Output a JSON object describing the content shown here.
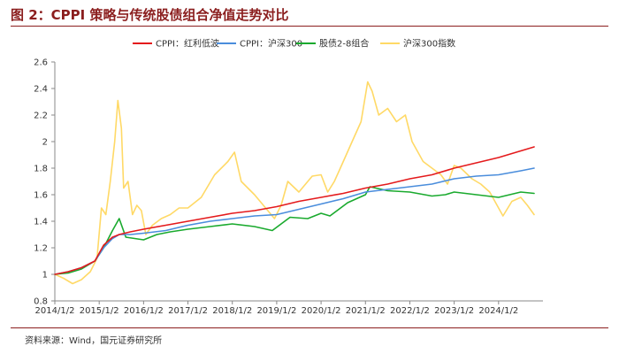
{
  "header": {
    "title": "图 2：CPPI 策略与传统股债组合净值走势对比"
  },
  "footer": {
    "source": "资料来源：Wind，国元证券研究所"
  },
  "colors": {
    "cppi_dividend": "#E41A1C",
    "cppi_hs300": "#4A8DDC",
    "stock_bond_28": "#1AAA2E",
    "hs300_index": "#FFD966",
    "axis": "#888888",
    "title": "#8B1E1E"
  },
  "chart_data": {
    "type": "line",
    "title": "",
    "xlabel": "",
    "ylabel": "",
    "ylim": [
      0.8,
      2.6
    ],
    "y_ticks": [
      "0.8",
      "1",
      "1.2",
      "1.4",
      "1.6",
      "1.8",
      "2",
      "2.2",
      "2.4",
      "2.6"
    ],
    "x_ticks": [
      "2014/1/2",
      "2015/1/2",
      "2016/1/2",
      "2017/1/2",
      "2018/1/2",
      "2019/1/2",
      "2020/1/2",
      "2021/1/2",
      "2022/1/2",
      "2023/1/2",
      "2024/1/2"
    ],
    "x_start": 2014.0,
    "x_end": 2025.0,
    "legend_position": "top",
    "series": [
      {
        "name": "CPPI：红利低波",
        "color": "#E41A1C",
        "points": [
          [
            2014.0,
            1.0
          ],
          [
            2014.3,
            1.02
          ],
          [
            2014.6,
            1.05
          ],
          [
            2014.9,
            1.1
          ],
          [
            2015.1,
            1.22
          ],
          [
            2015.3,
            1.28
          ],
          [
            2015.45,
            1.3
          ],
          [
            2015.7,
            1.32
          ],
          [
            2016.0,
            1.34
          ],
          [
            2016.5,
            1.37
          ],
          [
            2017.0,
            1.4
          ],
          [
            2017.5,
            1.43
          ],
          [
            2018.0,
            1.46
          ],
          [
            2018.5,
            1.48
          ],
          [
            2019.0,
            1.51
          ],
          [
            2019.5,
            1.55
          ],
          [
            2020.0,
            1.58
          ],
          [
            2020.5,
            1.61
          ],
          [
            2021.0,
            1.65
          ],
          [
            2021.5,
            1.68
          ],
          [
            2022.0,
            1.72
          ],
          [
            2022.5,
            1.75
          ],
          [
            2023.0,
            1.8
          ],
          [
            2023.5,
            1.84
          ],
          [
            2024.0,
            1.88
          ],
          [
            2024.5,
            1.93
          ],
          [
            2024.8,
            1.96
          ]
        ]
      },
      {
        "name": "CPPI：沪深300",
        "color": "#4A8DDC",
        "points": [
          [
            2014.0,
            1.0
          ],
          [
            2014.3,
            1.02
          ],
          [
            2014.6,
            1.05
          ],
          [
            2014.9,
            1.1
          ],
          [
            2015.1,
            1.2
          ],
          [
            2015.3,
            1.27
          ],
          [
            2015.45,
            1.3
          ],
          [
            2015.7,
            1.3
          ],
          [
            2016.0,
            1.31
          ],
          [
            2016.5,
            1.33
          ],
          [
            2017.0,
            1.37
          ],
          [
            2017.5,
            1.4
          ],
          [
            2018.0,
            1.42
          ],
          [
            2018.5,
            1.44
          ],
          [
            2019.0,
            1.45
          ],
          [
            2019.5,
            1.49
          ],
          [
            2020.0,
            1.53
          ],
          [
            2020.5,
            1.57
          ],
          [
            2021.0,
            1.62
          ],
          [
            2021.5,
            1.64
          ],
          [
            2022.0,
            1.66
          ],
          [
            2022.5,
            1.68
          ],
          [
            2023.0,
            1.72
          ],
          [
            2023.5,
            1.74
          ],
          [
            2024.0,
            1.75
          ],
          [
            2024.5,
            1.78
          ],
          [
            2024.8,
            1.8
          ]
        ]
      },
      {
        "name": "股债2-8组合",
        "color": "#1AAA2E",
        "points": [
          [
            2014.0,
            1.0
          ],
          [
            2014.3,
            1.01
          ],
          [
            2014.6,
            1.04
          ],
          [
            2014.9,
            1.1
          ],
          [
            2015.1,
            1.2
          ],
          [
            2015.3,
            1.33
          ],
          [
            2015.45,
            1.42
          ],
          [
            2015.6,
            1.28
          ],
          [
            2015.8,
            1.27
          ],
          [
            2016.0,
            1.26
          ],
          [
            2016.3,
            1.3
          ],
          [
            2016.6,
            1.32
          ],
          [
            2017.0,
            1.34
          ],
          [
            2017.5,
            1.36
          ],
          [
            2018.0,
            1.38
          ],
          [
            2018.5,
            1.36
          ],
          [
            2018.9,
            1.33
          ],
          [
            2019.3,
            1.43
          ],
          [
            2019.7,
            1.42
          ],
          [
            2020.0,
            1.46
          ],
          [
            2020.2,
            1.44
          ],
          [
            2020.6,
            1.54
          ],
          [
            2021.0,
            1.6
          ],
          [
            2021.1,
            1.66
          ],
          [
            2021.5,
            1.63
          ],
          [
            2022.0,
            1.62
          ],
          [
            2022.5,
            1.59
          ],
          [
            2022.8,
            1.6
          ],
          [
            2023.0,
            1.62
          ],
          [
            2023.5,
            1.6
          ],
          [
            2024.0,
            1.58
          ],
          [
            2024.5,
            1.62
          ],
          [
            2024.8,
            1.61
          ]
        ]
      },
      {
        "name": "沪深300指数",
        "color": "#FFD966",
        "points": [
          [
            2014.0,
            1.0
          ],
          [
            2014.2,
            0.97
          ],
          [
            2014.4,
            0.93
          ],
          [
            2014.6,
            0.96
          ],
          [
            2014.8,
            1.02
          ],
          [
            2014.95,
            1.12
          ],
          [
            2015.05,
            1.5
          ],
          [
            2015.15,
            1.45
          ],
          [
            2015.25,
            1.7
          ],
          [
            2015.35,
            2.0
          ],
          [
            2015.42,
            2.31
          ],
          [
            2015.5,
            2.1
          ],
          [
            2015.55,
            1.65
          ],
          [
            2015.65,
            1.7
          ],
          [
            2015.75,
            1.45
          ],
          [
            2015.85,
            1.52
          ],
          [
            2015.95,
            1.48
          ],
          [
            2016.05,
            1.3
          ],
          [
            2016.2,
            1.37
          ],
          [
            2016.4,
            1.42
          ],
          [
            2016.6,
            1.45
          ],
          [
            2016.8,
            1.5
          ],
          [
            2017.0,
            1.5
          ],
          [
            2017.3,
            1.58
          ],
          [
            2017.6,
            1.75
          ],
          [
            2017.9,
            1.85
          ],
          [
            2018.05,
            1.92
          ],
          [
            2018.2,
            1.7
          ],
          [
            2018.5,
            1.6
          ],
          [
            2018.8,
            1.48
          ],
          [
            2018.95,
            1.42
          ],
          [
            2019.1,
            1.52
          ],
          [
            2019.25,
            1.7
          ],
          [
            2019.5,
            1.62
          ],
          [
            2019.8,
            1.74
          ],
          [
            2020.0,
            1.75
          ],
          [
            2020.15,
            1.62
          ],
          [
            2020.3,
            1.7
          ],
          [
            2020.5,
            1.85
          ],
          [
            2020.7,
            2.0
          ],
          [
            2020.9,
            2.15
          ],
          [
            2021.05,
            2.45
          ],
          [
            2021.15,
            2.38
          ],
          [
            2021.3,
            2.2
          ],
          [
            2021.5,
            2.25
          ],
          [
            2021.7,
            2.15
          ],
          [
            2021.9,
            2.2
          ],
          [
            2022.05,
            2.0
          ],
          [
            2022.3,
            1.85
          ],
          [
            2022.5,
            1.8
          ],
          [
            2022.7,
            1.75
          ],
          [
            2022.85,
            1.68
          ],
          [
            2023.0,
            1.82
          ],
          [
            2023.15,
            1.8
          ],
          [
            2023.4,
            1.72
          ],
          [
            2023.6,
            1.68
          ],
          [
            2023.8,
            1.62
          ],
          [
            2024.0,
            1.5
          ],
          [
            2024.1,
            1.44
          ],
          [
            2024.3,
            1.55
          ],
          [
            2024.5,
            1.58
          ],
          [
            2024.65,
            1.52
          ],
          [
            2024.8,
            1.45
          ]
        ]
      }
    ]
  }
}
